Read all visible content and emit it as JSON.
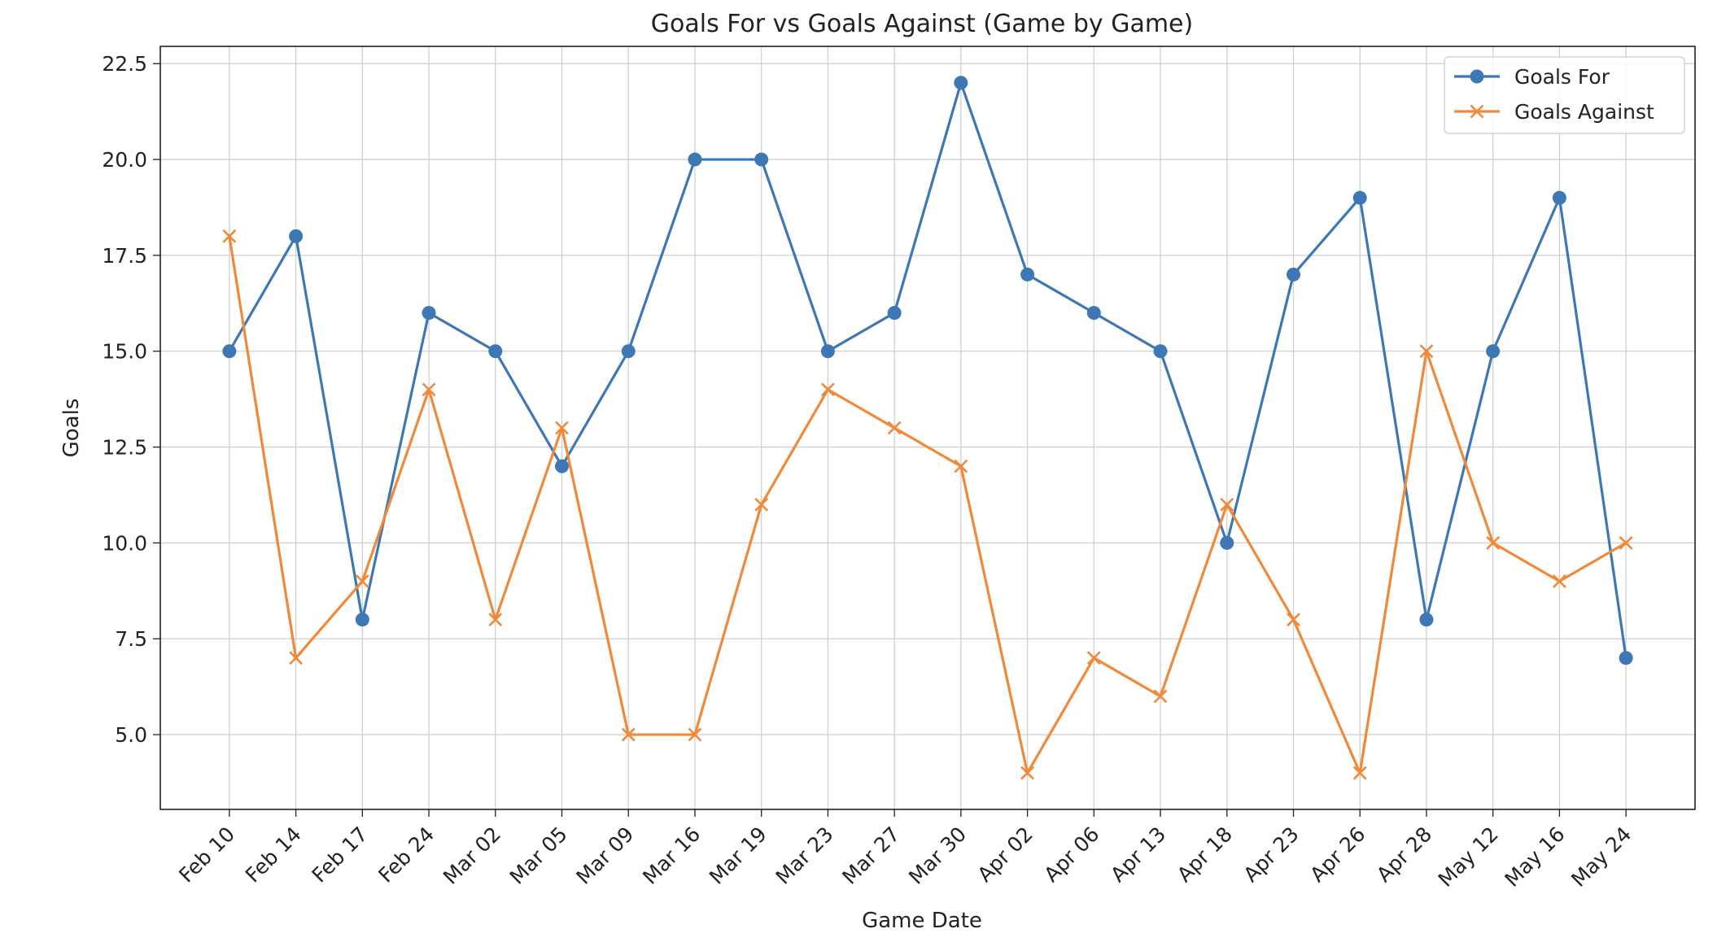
{
  "chart_data": {
    "type": "line",
    "title": "Goals For vs Goals Against (Game by Game)",
    "xlabel": "Game Date",
    "ylabel": "Goals",
    "categories": [
      "Feb 10",
      "Feb 14",
      "Feb 17",
      "Feb 24",
      "Mar 02",
      "Mar 05",
      "Mar 09",
      "Mar 16",
      "Mar 19",
      "Mar 23",
      "Mar 27",
      "Mar 30",
      "Apr 02",
      "Apr 06",
      "Apr 13",
      "Apr 18",
      "Apr 23",
      "Apr 26",
      "Apr 28",
      "May 12",
      "May 16",
      "May 24"
    ],
    "series": [
      {
        "name": "Goals For",
        "marker": "circle",
        "color": "#3d78b4",
        "values": [
          15,
          18,
          8,
          16,
          15,
          12,
          15,
          20,
          20,
          15,
          16,
          22,
          17,
          16,
          15,
          10,
          17,
          19,
          8,
          15,
          19,
          7
        ]
      },
      {
        "name": "Goals Against",
        "marker": "x",
        "color": "#f0893a",
        "values": [
          18,
          7,
          9,
          14,
          8,
          13,
          5,
          5,
          11,
          14,
          13,
          12,
          4,
          7,
          6,
          11,
          8,
          4,
          15,
          10,
          9,
          10
        ]
      }
    ],
    "ylim": [
      3.05,
      22.95
    ],
    "yticks": [
      5.0,
      7.5,
      10.0,
      12.5,
      15.0,
      17.5,
      20.0,
      22.5
    ],
    "ytick_labels": [
      "5.0",
      "7.5",
      "10.0",
      "12.5",
      "15.0",
      "17.5",
      "20.0",
      "22.5"
    ],
    "grid": true,
    "legend_position": "top-right"
  }
}
